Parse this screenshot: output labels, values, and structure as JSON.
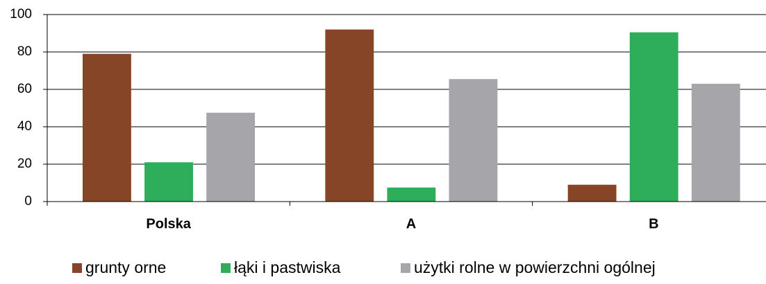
{
  "chart_data": {
    "type": "bar",
    "categories": [
      "Polska",
      "A",
      "B"
    ],
    "series": [
      {
        "name": "grunty orne",
        "color": "#874527",
        "values": [
          79,
          92,
          9
        ]
      },
      {
        "name": "łąki i pastwiska",
        "color": "#2eae5a",
        "values": [
          21,
          7.5,
          90.5
        ]
      },
      {
        "name": "użytki rolne w powierzchni ogólnej",
        "color": "#a6a6aa",
        "values": [
          47.5,
          65.5,
          63
        ]
      }
    ],
    "ylim": [
      0,
      100
    ],
    "yticks": [
      0,
      20,
      40,
      60,
      80,
      100
    ],
    "grid": true,
    "legend": "bottom"
  }
}
